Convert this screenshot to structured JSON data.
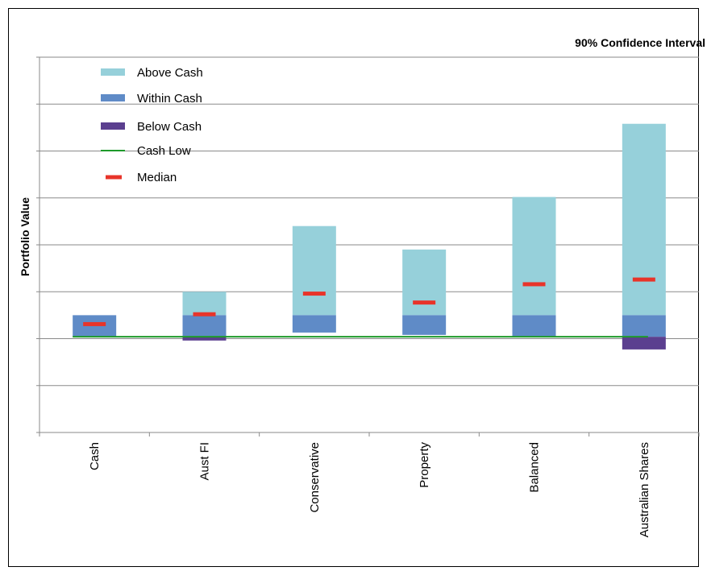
{
  "chart_data": {
    "type": "bar",
    "title": "90% Confidence Interval",
    "xlabel": "",
    "ylabel": "Portfolio Value",
    "ylim": [
      0,
      8
    ],
    "grid": "horizontal",
    "legend_placement": "top-left",
    "categories": [
      "Cash",
      "Aust FI",
      "Conservative",
      "Property",
      "Balanced",
      "Australian Shares"
    ],
    "series": [
      {
        "name": "Above Cash",
        "type": "range-bar",
        "color": "#96d0da",
        "ranges": [
          null,
          [
            2.5,
            3.0
          ],
          [
            2.5,
            4.4
          ],
          [
            2.5,
            3.9
          ],
          [
            2.5,
            5.02
          ],
          [
            2.5,
            6.58
          ]
        ]
      },
      {
        "name": "Within Cash",
        "type": "range-bar",
        "color": "#5f8bc7",
        "ranges": [
          [
            2.04,
            2.5
          ],
          [
            2.04,
            2.5
          ],
          [
            2.13,
            2.5
          ],
          [
            2.08,
            2.5
          ],
          [
            2.04,
            2.5
          ],
          [
            2.04,
            2.5
          ]
        ]
      },
      {
        "name": "Below Cash",
        "type": "range-bar",
        "color": "#5b3f8f",
        "ranges": [
          null,
          [
            1.96,
            2.04
          ],
          null,
          null,
          null,
          [
            1.77,
            2.04
          ]
        ]
      },
      {
        "name": "Cash Low",
        "type": "line",
        "color": "#1e9a2a",
        "values": [
          2.04,
          2.04,
          2.04,
          2.04,
          2.04,
          2.04
        ]
      },
      {
        "name": "Median",
        "type": "marker",
        "color": "#e8342a",
        "values": [
          2.31,
          2.52,
          2.96,
          2.77,
          3.16,
          3.26
        ]
      }
    ]
  }
}
